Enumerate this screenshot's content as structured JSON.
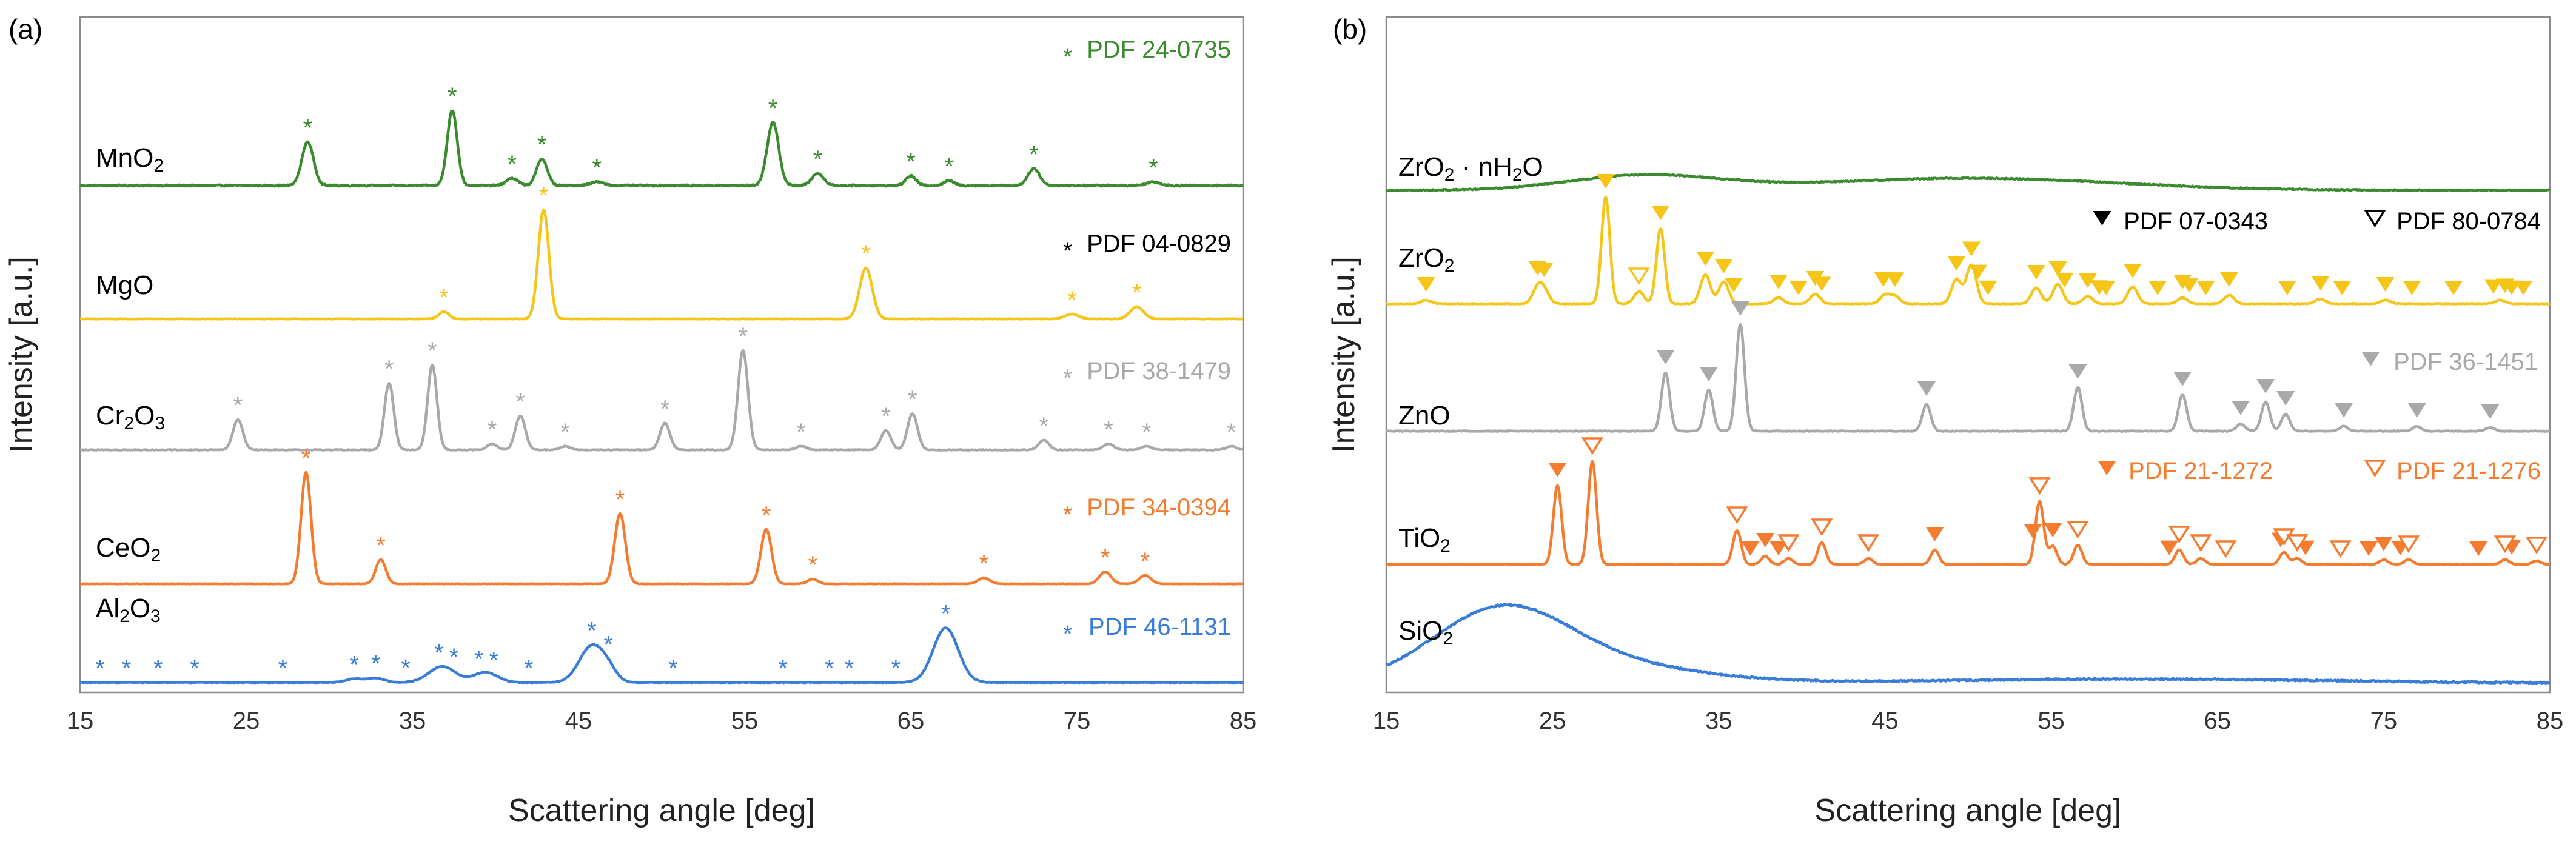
{
  "chart_data": [
    {
      "type": "line",
      "panel_label": "(a)",
      "xlabel": "Scattering angle [deg]",
      "ylabel": "Intensity [a.u.]",
      "xlim": [
        15,
        85
      ],
      "x_ticks": [
        "15",
        "25",
        "35",
        "45",
        "55",
        "65",
        "75",
        "85"
      ],
      "grid": false,
      "series": [
        {
          "name": "MnO2",
          "label_main": "MnO",
          "label_sub": "2",
          "color": "#3a8a2e",
          "baseline": 0.08,
          "noise": 0.006,
          "reference": "PDF 24-0735",
          "ref_marker": "star",
          "peaks": [
            [
              28.7,
              0.36,
              0.35
            ],
            [
              37.4,
              0.62,
              0.3
            ],
            [
              41.0,
              0.06,
              0.35
            ],
            [
              42.8,
              0.22,
              0.32
            ],
            [
              46.1,
              0.03,
              0.4
            ],
            [
              56.7,
              0.52,
              0.35
            ],
            [
              59.4,
              0.1,
              0.35
            ],
            [
              65.0,
              0.08,
              0.3
            ],
            [
              67.3,
              0.04,
              0.3
            ],
            [
              72.4,
              0.14,
              0.35
            ],
            [
              79.6,
              0.03,
              0.4
            ]
          ],
          "markers": [
            28.7,
            37.4,
            41.0,
            42.8,
            46.1,
            56.7,
            59.4,
            65.0,
            67.3,
            72.4,
            79.6
          ]
        },
        {
          "name": "MgO",
          "label_main": "MgO",
          "label_sub": "",
          "color": "#f5c518",
          "baseline": 0.02,
          "noise": 0.002,
          "reference": "PDF 04-0829",
          "ref_marker": "star",
          "peaks": [
            [
              36.9,
              0.06,
              0.3
            ],
            [
              42.9,
              0.9,
              0.32
            ],
            [
              62.3,
              0.42,
              0.38
            ],
            [
              74.7,
              0.04,
              0.4
            ],
            [
              78.6,
              0.1,
              0.4
            ]
          ],
          "markers": [
            36.9,
            42.9,
            62.3,
            74.7,
            78.6
          ]
        },
        {
          "name": "Cr2O3",
          "label_main": "Cr",
          "label_sub": "2",
          "label_main2": "O",
          "label_sub2": "3",
          "color": "#a9a9a9",
          "baseline": 0.03,
          "noise": 0.003,
          "reference": "PDF 38-1479",
          "ref_marker": "star",
          "peaks": [
            [
              24.5,
              0.25,
              0.3
            ],
            [
              33.6,
              0.55,
              0.28
            ],
            [
              36.2,
              0.7,
              0.28
            ],
            [
              39.8,
              0.05,
              0.3
            ],
            [
              41.5,
              0.28,
              0.3
            ],
            [
              44.2,
              0.03,
              0.3
            ],
            [
              50.2,
              0.22,
              0.3
            ],
            [
              54.9,
              0.82,
              0.3
            ],
            [
              58.4,
              0.03,
              0.3
            ],
            [
              63.5,
              0.16,
              0.3
            ],
            [
              65.1,
              0.3,
              0.3
            ],
            [
              73.0,
              0.08,
              0.3
            ],
            [
              76.9,
              0.05,
              0.3
            ],
            [
              79.2,
              0.03,
              0.3
            ],
            [
              84.3,
              0.03,
              0.3
            ]
          ],
          "markers": [
            24.5,
            33.6,
            36.2,
            39.8,
            41.5,
            44.2,
            50.2,
            54.9,
            58.4,
            63.5,
            65.1,
            73.0,
            76.9,
            79.2,
            84.3
          ]
        },
        {
          "name": "CeO2",
          "label_main": "CeO",
          "label_sub": "2",
          "color": "#f47c30",
          "baseline": 0.02,
          "noise": 0.002,
          "reference": "PDF 34-0394",
          "ref_marker": "star",
          "peaks": [
            [
              28.6,
              0.92,
              0.3
            ],
            [
              33.1,
              0.2,
              0.3
            ],
            [
              47.5,
              0.58,
              0.32
            ],
            [
              56.3,
              0.45,
              0.32
            ],
            [
              59.1,
              0.04,
              0.3
            ],
            [
              69.4,
              0.05,
              0.35
            ],
            [
              76.7,
              0.1,
              0.35
            ],
            [
              79.1,
              0.07,
              0.35
            ]
          ],
          "markers": [
            28.6,
            33.1,
            47.5,
            56.3,
            59.1,
            69.4,
            76.7,
            79.1
          ]
        },
        {
          "name": "Al2O3",
          "label_main": "Al",
          "label_sub": "2",
          "label_main2": "O",
          "label_sub2": "3",
          "color": "#3a7dd8",
          "baseline": 0.02,
          "noise": 0.004,
          "reference": "PDF 46-1131",
          "ref_marker": "star",
          "peaks": [
            [
              31.5,
              0.05,
              0.5
            ],
            [
              32.8,
              0.06,
              0.5
            ],
            [
              36.8,
              0.22,
              0.8
            ],
            [
              39.4,
              0.14,
              0.7
            ],
            [
              45.8,
              0.5,
              0.75
            ],
            [
              46.8,
              0.12,
              0.5
            ],
            [
              67.1,
              0.75,
              0.75
            ]
          ],
          "markers": [
            16.2,
            17.8,
            19.7,
            21.9,
            27.2,
            31.5,
            32.8,
            34.6,
            36.6,
            37.5,
            39.0,
            39.9,
            42.0,
            45.8,
            46.8,
            50.7,
            57.3,
            60.1,
            61.3,
            64.1,
            67.1
          ]
        }
      ]
    },
    {
      "type": "line",
      "panel_label": "(b)",
      "xlabel": "Scattering angle [deg]",
      "ylabel": "Intensity [a.u.]",
      "xlim": [
        15,
        85
      ],
      "x_ticks": [
        "15",
        "25",
        "35",
        "45",
        "55",
        "65",
        "75",
        "85"
      ],
      "grid": false,
      "series": [
        {
          "name": "ZrO2 · nH2O",
          "label_main": "ZrO",
          "label_sub": "2",
          "label_main2": " · nH",
          "label_sub2": "2",
          "label_main3": "O",
          "color": "#3a8a2e",
          "baseline": 0.02,
          "noise": 0.005,
          "reference": "",
          "ref_marker": "",
          "peaks": [
            [
              30.5,
              0.12,
              4.5
            ],
            [
              50.0,
              0.1,
              9.0
            ]
          ],
          "markers": []
        },
        {
          "name": "ZrO2",
          "label_main": "ZrO",
          "label_sub": "2",
          "color": "#f5c518",
          "baseline": 0.03,
          "noise": 0.003,
          "reference": "PDF 07-0343",
          "ref_marker": "tri-filled",
          "reference2": "PDF 80-0784",
          "ref_marker2": "tri-open",
          "peaks": [
            [
              17.4,
              0.03,
              0.3
            ],
            [
              24.1,
              0.12,
              0.3
            ],
            [
              24.5,
              0.1,
              0.3
            ],
            [
              28.2,
              0.88,
              0.25
            ],
            [
              30.2,
              0.1,
              0.3
            ],
            [
              31.5,
              0.62,
              0.25
            ],
            [
              34.2,
              0.24,
              0.3
            ],
            [
              35.3,
              0.18,
              0.3
            ],
            [
              38.6,
              0.05,
              0.3
            ],
            [
              40.8,
              0.08,
              0.3
            ],
            [
              45.0,
              0.07,
              0.3
            ],
            [
              45.6,
              0.06,
              0.3
            ],
            [
              49.3,
              0.2,
              0.3
            ],
            [
              50.2,
              0.32,
              0.3
            ],
            [
              54.1,
              0.13,
              0.3
            ],
            [
              55.4,
              0.16,
              0.3
            ],
            [
              57.2,
              0.06,
              0.3
            ],
            [
              59.9,
              0.14,
              0.3
            ],
            [
              62.9,
              0.05,
              0.3
            ],
            [
              65.7,
              0.07,
              0.3
            ],
            [
              71.2,
              0.04,
              0.3
            ],
            [
              75.1,
              0.03,
              0.3
            ],
            [
              82.0,
              0.03,
              0.3
            ]
          ],
          "markers": [
            17.4,
            24.1,
            24.5,
            28.2,
            31.5,
            34.2,
            35.3,
            35.9,
            38.6,
            39.8,
            40.8,
            41.2,
            44.9,
            45.6,
            49.3,
            50.2,
            50.6,
            51.2,
            54.1,
            55.4,
            55.8,
            57.2,
            57.9,
            58.3,
            59.9,
            61.4,
            62.9,
            63.3,
            64.3,
            65.7,
            69.2,
            71.2,
            72.5,
            75.1,
            76.7,
            79.2,
            81.6,
            82.3,
            82.7,
            83.4
          ],
          "markers2": [
            30.2
          ]
        },
        {
          "name": "ZnO",
          "label_main": "ZnO",
          "label_sub": "",
          "color": "#a9a9a9",
          "baseline": 0.03,
          "noise": 0.003,
          "reference": "PDF 36-1451",
          "ref_marker": "tri-filled",
          "peaks": [
            [
              31.8,
              0.48,
              0.25
            ],
            [
              34.4,
              0.34,
              0.25
            ],
            [
              36.3,
              0.88,
              0.25
            ],
            [
              47.5,
              0.22,
              0.25
            ],
            [
              56.6,
              0.36,
              0.25
            ],
            [
              62.9,
              0.3,
              0.25
            ],
            [
              66.4,
              0.06,
              0.25
            ],
            [
              67.9,
              0.24,
              0.25
            ],
            [
              69.1,
              0.14,
              0.25
            ],
            [
              72.6,
              0.04,
              0.25
            ],
            [
              77.0,
              0.04,
              0.25
            ],
            [
              81.4,
              0.03,
              0.25
            ]
          ],
          "markers": [
            31.8,
            34.4,
            36.3,
            47.5,
            56.6,
            62.9,
            66.4,
            67.9,
            69.1,
            72.6,
            77.0,
            81.4
          ]
        },
        {
          "name": "TiO2",
          "label_main": "TiO",
          "label_sub": "2",
          "color": "#f47c30",
          "baseline": 0.03,
          "noise": 0.003,
          "reference": "PDF 21-1272",
          "ref_marker": "tri-filled",
          "reference2": "PDF 21-1276",
          "ref_marker2": "tri-open",
          "peaks": [
            [
              25.3,
              0.65,
              0.25
            ],
            [
              27.4,
              0.85,
              0.25
            ],
            [
              36.1,
              0.28,
              0.25
            ],
            [
              37.8,
              0.07,
              0.25
            ],
            [
              39.2,
              0.05,
              0.25
            ],
            [
              41.2,
              0.18,
              0.25
            ],
            [
              44.0,
              0.05,
              0.25
            ],
            [
              48.0,
              0.12,
              0.25
            ],
            [
              54.3,
              0.52,
              0.25
            ],
            [
              55.1,
              0.15,
              0.25
            ],
            [
              56.6,
              0.16,
              0.25
            ],
            [
              62.7,
              0.12,
              0.25
            ],
            [
              64.0,
              0.05,
              0.25
            ],
            [
              69.0,
              0.1,
              0.25
            ],
            [
              69.8,
              0.05,
              0.25
            ],
            [
              75.0,
              0.04,
              0.25
            ],
            [
              76.5,
              0.04,
              0.25
            ],
            [
              82.3,
              0.04,
              0.25
            ],
            [
              84.2,
              0.03,
              0.25
            ]
          ],
          "markers": [
            25.3,
            36.9,
            37.8,
            38.6,
            48.0,
            53.9,
            55.1,
            62.1,
            62.7,
            68.8,
            70.3,
            74.1,
            75.0,
            76.0,
            80.7,
            82.7
          ],
          "markers2": [
            27.4,
            36.1,
            39.2,
            41.2,
            44.0,
            54.3,
            56.6,
            62.7,
            64.0,
            65.5,
            69.0,
            69.8,
            72.4,
            76.5,
            82.3,
            84.2
          ]
        },
        {
          "name": "SiO2",
          "label_main": "SiO",
          "label_sub": "2",
          "color": "#3a7dd8",
          "baseline": 0.01,
          "noise": 0.004,
          "reference": "",
          "ref_marker": "",
          "peaks": [
            [
              21.8,
              0.32,
              4.0
            ],
            [
              27.0,
              0.1,
              6.0
            ],
            [
              60.0,
              0.02,
              12.0
            ]
          ],
          "markers": []
        }
      ]
    }
  ]
}
